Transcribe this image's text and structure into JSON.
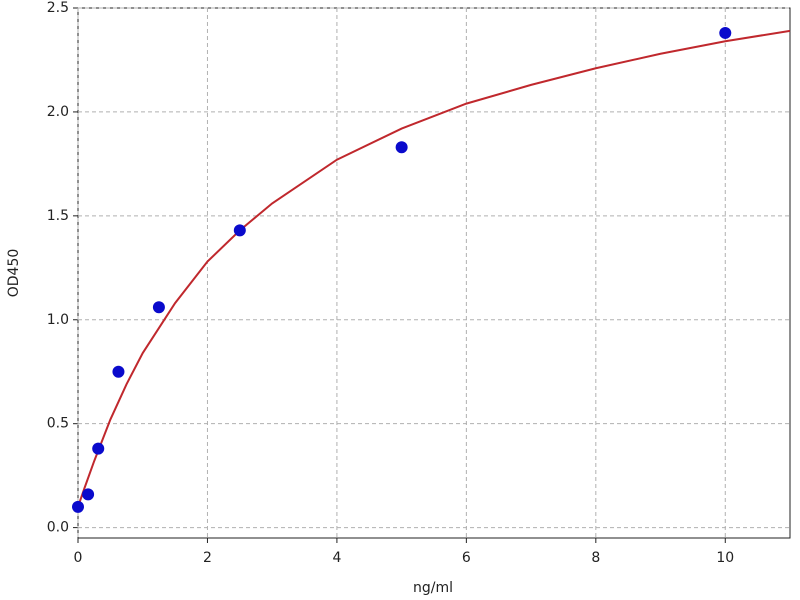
{
  "chart_data": {
    "type": "scatter",
    "x_label": "ng/ml",
    "y_label": "OD450",
    "xlim": [
      0,
      11
    ],
    "ylim": [
      -0.05,
      2.5
    ],
    "xticks": [
      0,
      2,
      4,
      6,
      8,
      10
    ],
    "yticks": [
      {
        "value": 0,
        "label": "0.0"
      },
      0.5,
      {
        "value": 1,
        "label": "1.0"
      },
      1.5,
      {
        "value": 2,
        "label": "2.0"
      },
      2.5
    ],
    "grid": true,
    "series": [
      {
        "mode": "line",
        "color": "#c0282d",
        "x": [
          0,
          0.1,
          0.25,
          0.5,
          0.75,
          1,
          1.5,
          2,
          2.5,
          3,
          4,
          5,
          6,
          7,
          8,
          9,
          10,
          11
        ],
        "values": [
          0.1,
          0.19,
          0.32,
          0.52,
          0.69,
          0.84,
          1.08,
          1.28,
          1.43,
          1.56,
          1.77,
          1.92,
          2.04,
          2.13,
          2.21,
          2.28,
          2.34,
          2.39
        ]
      },
      {
        "mode": "markers",
        "color": "#0a0acc",
        "x": [
          0,
          0.156,
          0.3125,
          0.625,
          1.25,
          2.5,
          5,
          10
        ],
        "values": [
          0.1,
          0.16,
          0.38,
          0.75,
          1.06,
          1.43,
          1.83,
          2.38
        ]
      }
    ]
  }
}
